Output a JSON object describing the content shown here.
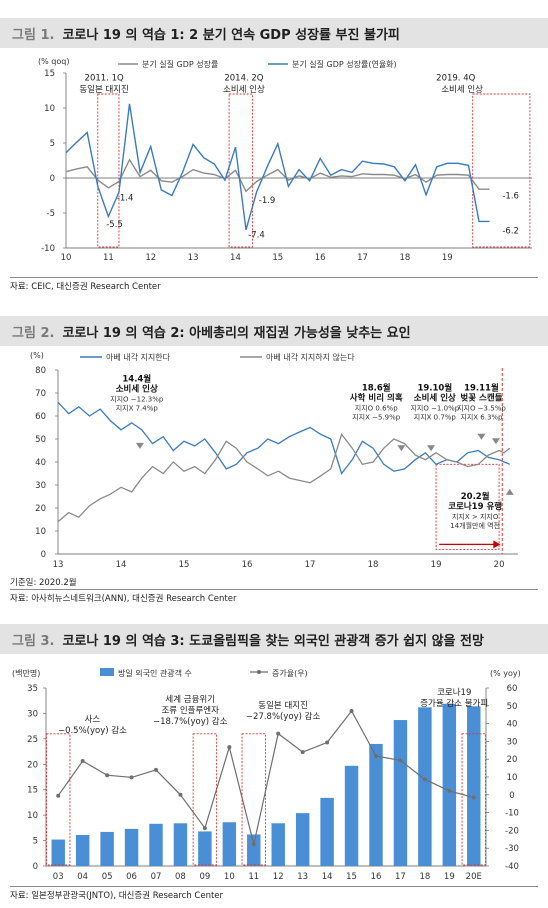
{
  "fig1": {
    "title_num": "그림 1.",
    "title": "코로나 19 의 역습 1: 2 분기 연속 GDP 성장률 부진 불가피",
    "unit": "(% qoq)",
    "legend": [
      "분기 실질 GDP 성장률",
      "분기 실질 GDP 성장률(연율화)"
    ],
    "source": "자료: CEIC, 대신증권 Research Center",
    "annotations": [
      {
        "text": "2011. 1Q",
        "t": 10.9,
        "y": 13.9
      },
      {
        "text": "동일본 대지진",
        "t": 10.9,
        "y": 12.3
      },
      {
        "text": "2014. 2Q",
        "t": 14.2,
        "y": 13.9
      },
      {
        "text": "소비세 인상",
        "t": 14.2,
        "y": 12.3
      },
      {
        "text": "2019. 4Q",
        "t": 19.2,
        "y": 13.9
      },
      {
        "text": "소비세 인상",
        "t": 19.35,
        "y": 12.3
      }
    ],
    "value_labels": [
      {
        "text": "-1.4",
        "t": 11.2,
        "y": -3.2
      },
      {
        "text": "-5.5",
        "t": 10.95,
        "y": -7.0
      },
      {
        "text": "-1.9",
        "t": 14.55,
        "y": -3.6
      },
      {
        "text": "-7.4",
        "t": 14.3,
        "y": -8.5
      },
      {
        "text": "-1.6",
        "t": 20.3,
        "y": -2.9
      },
      {
        "text": "-6.2",
        "t": 20.3,
        "y": -7.9
      }
    ]
  },
  "fig2": {
    "title_num": "그림 2.",
    "title": "코로나 19 의 역습 2: 아베총리의 재집권 가능성을 낮추는 요인",
    "unit": "(%)",
    "legend": [
      "아베 내각 지지한다",
      "아베 내각 지지하지 않는다"
    ],
    "note": "기준일: 2020.2월",
    "source": "자료: 아사히뉴스네트워크(ANN), 대신증권 Research Center",
    "annotations": [
      {
        "lines": [
          "14.4월",
          "소비세 인상"
        ],
        "sub": [
          "지지O −12.3%p",
          "지지X 7.4%p"
        ],
        "t": 14.25,
        "y": 75
      },
      {
        "lines": [
          "18.6월",
          "사학 비리 의혹"
        ],
        "sub": [
          "지지O 0.6%p",
          "지지X −5.9%p"
        ],
        "t": 18.05,
        "y": 71
      },
      {
        "lines": [
          "19.10월",
          "소비세 인상"
        ],
        "sub": [
          "지지O −1.0%p",
          "지지X 0.7%p"
        ],
        "t": 18.98,
        "y": 71
      },
      {
        "lines": [
          "19.11월",
          "벚꽃 스캔들"
        ],
        "sub": [
          "지지O −3.5%p",
          "지지X 6.3%p"
        ],
        "t": 19.72,
        "y": 71
      },
      {
        "lines": [
          "20.2월",
          "코로나19 유행"
        ],
        "sub": [
          "지지X > 지지O",
          "14개월만에 역전"
        ],
        "t": 19.62,
        "y": 24
      }
    ]
  },
  "fig3": {
    "title_num": "그림 3.",
    "title": "코로나 19 의 역습 3: 도쿄올림픽을 찾는 외국인 관광객 증가 쉽지 않을 전망",
    "unit_left": "(백만명)",
    "unit_right": "(% yoy)",
    "legend": [
      "방일 외국인 관광객 수",
      "증가율(우)"
    ],
    "source": "자료: 일본정부관광국(JNTO), 대신증권 Research Center",
    "annotations": [
      {
        "lines": [
          "사스",
          "−0.5%(yoy) 감소"
        ]
      },
      {
        "lines": [
          "세계 금융위기",
          "조류 인플루엔자",
          "−18.7%(yoy) 감소"
        ]
      },
      {
        "lines": [
          "동일본 대지진",
          "−27.8%(yoy) 감소"
        ]
      },
      {
        "lines": [
          "코로나19",
          "증가율 감소 불가피"
        ]
      }
    ]
  },
  "chart_data": [
    {
      "type": "line",
      "title": "코로나 19 의 역습 1: 2 분기 연속 GDP 성장률 부진 불가피",
      "ylabel": "(% qoq)",
      "ylim": [
        -10,
        15
      ],
      "xlim": [
        10,
        21
      ],
      "x_ticks": [
        "10",
        "11",
        "12",
        "13",
        "14",
        "15",
        "16",
        "17",
        "18",
        "19"
      ],
      "series": [
        {
          "name": "분기 실질 GDP 성장률",
          "color": "#8a8a8a",
          "x": [
            10.0,
            10.25,
            10.5,
            10.75,
            11.0,
            11.25,
            11.5,
            11.75,
            12.0,
            12.25,
            12.5,
            12.75,
            13.0,
            13.25,
            13.5,
            13.75,
            14.0,
            14.25,
            14.5,
            14.75,
            15.0,
            15.25,
            15.5,
            15.75,
            16.0,
            16.25,
            16.5,
            16.75,
            17.0,
            17.25,
            17.5,
            17.75,
            18.0,
            18.25,
            18.5,
            18.75,
            19.0,
            19.25,
            19.5,
            19.75,
            20.0
          ],
          "y": [
            0.9,
            1.3,
            1.6,
            -0.3,
            -1.4,
            -0.5,
            2.6,
            0.2,
            1.1,
            -0.4,
            -0.6,
            0.2,
            1.2,
            0.7,
            0.5,
            -0.1,
            1.1,
            -1.9,
            -0.5,
            0.4,
            1.2,
            -0.3,
            0.3,
            -0.1,
            0.7,
            0.1,
            0.3,
            0.2,
            0.6,
            0.5,
            0.5,
            0.4,
            -0.1,
            0.5,
            -0.6,
            0.4,
            0.5,
            0.5,
            0.4,
            -1.6,
            -1.6
          ]
        },
        {
          "name": "분기 실질 GDP 성장률(연율화)",
          "color": "#3a7bbf",
          "x": [
            10.0,
            10.25,
            10.5,
            10.75,
            11.0,
            11.25,
            11.5,
            11.75,
            12.0,
            12.25,
            12.5,
            12.75,
            13.0,
            13.25,
            13.5,
            13.75,
            14.0,
            14.25,
            14.5,
            14.75,
            15.0,
            15.25,
            15.5,
            15.75,
            16.0,
            16.25,
            16.5,
            16.75,
            17.0,
            17.25,
            17.5,
            17.75,
            18.0,
            18.25,
            18.5,
            18.75,
            19.0,
            19.25,
            19.5,
            19.75,
            20.0
          ],
          "y": [
            3.6,
            5.1,
            6.5,
            -1.2,
            -5.5,
            -2.0,
            10.6,
            0.8,
            4.5,
            -1.7,
            -2.5,
            0.8,
            4.8,
            2.9,
            2.0,
            -0.3,
            4.4,
            -7.4,
            -2.0,
            1.6,
            4.9,
            -1.2,
            1.2,
            -0.4,
            2.8,
            0.4,
            1.2,
            0.8,
            2.4,
            2.1,
            2.0,
            1.6,
            -0.4,
            1.9,
            -2.4,
            1.6,
            2.1,
            2.1,
            1.8,
            -6.2,
            -6.2
          ]
        }
      ]
    },
    {
      "type": "line",
      "title": "코로나 19 의 역습 2: 아베총리의 재집권 가능성을 낮추는 요인",
      "ylabel": "(%)",
      "ylim": [
        0,
        80
      ],
      "xlim": [
        13,
        20.3
      ],
      "x_ticks": [
        "13",
        "14",
        "15",
        "16",
        "17",
        "18",
        "19",
        "20"
      ],
      "series": [
        {
          "name": "아베 내각 지지한다",
          "color": "#3a7bbf",
          "x": [
            13.0,
            13.17,
            13.33,
            13.5,
            13.67,
            13.83,
            14.0,
            14.17,
            14.33,
            14.5,
            14.67,
            14.83,
            15.0,
            15.17,
            15.33,
            15.5,
            15.67,
            15.83,
            16.0,
            16.17,
            16.33,
            16.5,
            16.67,
            16.83,
            17.0,
            17.17,
            17.33,
            17.5,
            17.67,
            17.83,
            18.0,
            18.17,
            18.33,
            18.5,
            18.67,
            18.83,
            19.0,
            19.17,
            19.33,
            19.5,
            19.67,
            19.83,
            20.0,
            20.08,
            20.17
          ],
          "y": [
            66,
            61,
            64,
            60,
            63,
            58,
            54,
            57,
            54,
            48,
            51,
            45,
            49,
            47,
            50,
            44,
            37,
            39,
            44,
            46,
            50,
            48,
            51,
            53,
            55,
            52,
            50,
            35,
            41,
            49,
            46,
            39,
            36,
            37,
            41,
            44,
            39,
            41,
            40,
            44,
            45,
            42,
            41,
            40,
            39
          ]
        },
        {
          "name": "아베 내각 지지하지 않는다",
          "color": "#8a8a8a",
          "x": [
            13.0,
            13.17,
            13.33,
            13.5,
            13.67,
            13.83,
            14.0,
            14.17,
            14.33,
            14.5,
            14.67,
            14.83,
            15.0,
            15.17,
            15.33,
            15.5,
            15.67,
            15.83,
            16.0,
            16.17,
            16.33,
            16.5,
            16.67,
            16.83,
            17.0,
            17.17,
            17.33,
            17.5,
            17.67,
            17.83,
            18.0,
            18.17,
            18.33,
            18.5,
            18.67,
            18.83,
            19.0,
            19.17,
            19.33,
            19.5,
            19.67,
            19.83,
            20.0,
            20.08,
            20.17
          ],
          "y": [
            14,
            18,
            16,
            21,
            24,
            26,
            29,
            27,
            33,
            38,
            35,
            40,
            36,
            38,
            35,
            41,
            49,
            46,
            40,
            37,
            34,
            36,
            33,
            32,
            31,
            34,
            37,
            52,
            46,
            39,
            40,
            46,
            50,
            48,
            43,
            41,
            44,
            41,
            40,
            38,
            39,
            43,
            45,
            44,
            46
          ]
        }
      ]
    },
    {
      "type": "bar",
      "title": "코로나 19 의 역습 3: 도쿄올림픽을 찾는 외국인 관광객 증가 쉽지 않을 전망",
      "ylabel": "(백만명)",
      "ylabel_right": "(% yoy)",
      "ylim": [
        0,
        35
      ],
      "ylim_right": [
        -40,
        60
      ],
      "categories": [
        "03",
        "04",
        "05",
        "06",
        "07",
        "08",
        "09",
        "10",
        "11",
        "12",
        "13",
        "14",
        "15",
        "16",
        "17",
        "18",
        "19",
        "20E"
      ],
      "series": [
        {
          "name": "방일 외국인 관광객 수",
          "color": "#4a8fd6",
          "values": [
            5.2,
            6.1,
            6.7,
            7.3,
            8.3,
            8.4,
            6.8,
            8.6,
            6.2,
            8.4,
            10.4,
            13.4,
            19.7,
            24.0,
            28.7,
            31.2,
            31.9,
            31.4
          ]
        },
        {
          "name": "증가율(우)",
          "axis": "right",
          "color": "#6f6f6f",
          "values": [
            -0.5,
            19.0,
            11.0,
            9.8,
            14.0,
            0.0,
            -18.7,
            26.8,
            -27.8,
            34.4,
            24.0,
            29.4,
            47.1,
            21.8,
            19.3,
            8.7,
            2.2,
            -1.5
          ]
        }
      ]
    }
  ]
}
